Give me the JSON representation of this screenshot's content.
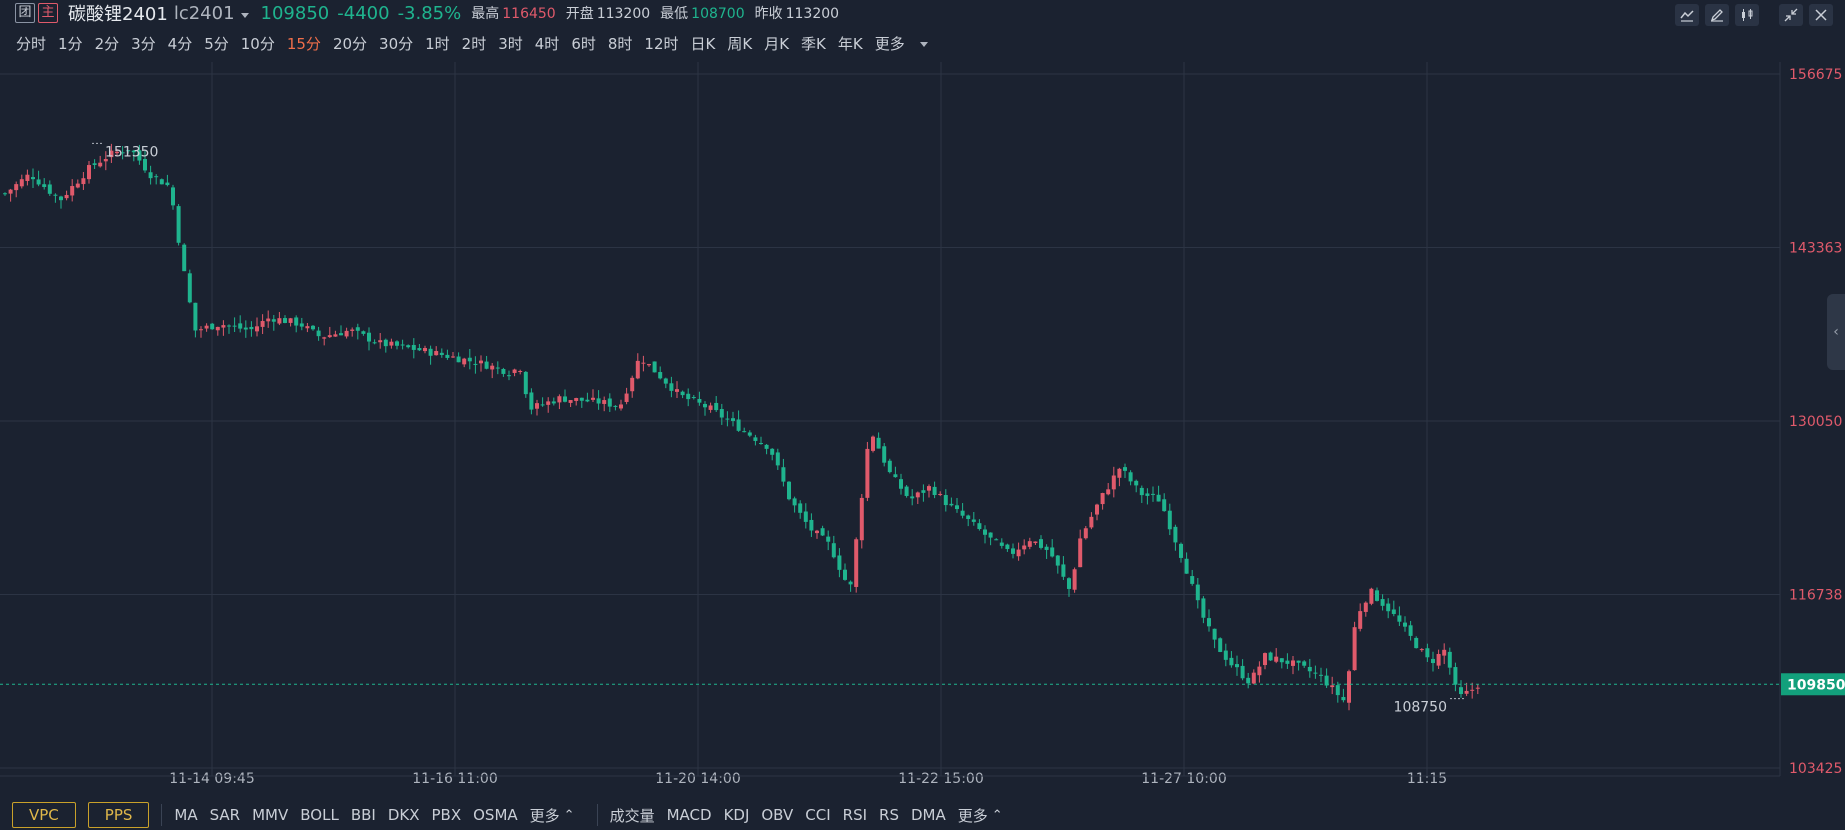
{
  "header": {
    "tag1": "团",
    "tag2": "主",
    "name": "碳酸锂2401",
    "code": "lc2401",
    "price": "109850",
    "change": "-4400",
    "change_pct": "-3.85%",
    "high_label": "最高",
    "high": "116450",
    "open_label": "开盘",
    "open": "113200",
    "low_label": "最低",
    "low": "108700",
    "prev_label": "昨收",
    "prev": "113200"
  },
  "periods": [
    "分时",
    "1分",
    "2分",
    "3分",
    "4分",
    "5分",
    "10分",
    "15分",
    "20分",
    "30分",
    "1时",
    "2时",
    "3时",
    "4时",
    "6时",
    "8时",
    "12时",
    "日K",
    "周K",
    "月K",
    "季K",
    "年K",
    "更多"
  ],
  "active_period": "15分",
  "price_axis": [
    "156675",
    "143363",
    "130050",
    "116738",
    "103425"
  ],
  "current_price_tag": "109850",
  "time_axis": [
    "11-14 09:45",
    "11-16 11:00",
    "11-20 14:00",
    "11-22 15:00",
    "11-27 10:00",
    "11:15"
  ],
  "annotations": {
    "max_label": "151350",
    "min_label": "108750"
  },
  "colors": {
    "up": "#e05a6b",
    "down": "#1fb48e",
    "bg": "#1b2230",
    "grid": "#2c3444",
    "accent": "#f06e4a"
  },
  "bottom": {
    "main_tags": [
      "VPC",
      "PPS"
    ],
    "main_indicators": [
      "MA",
      "SAR",
      "MMV",
      "BOLL",
      "BBI",
      "DKX",
      "PBX",
      "OSMA",
      "更多"
    ],
    "sub_indicators": [
      "成交量",
      "MACD",
      "KDJ",
      "OBV",
      "CCI",
      "RSI",
      "RS",
      "DMA",
      "更多"
    ]
  }
}
